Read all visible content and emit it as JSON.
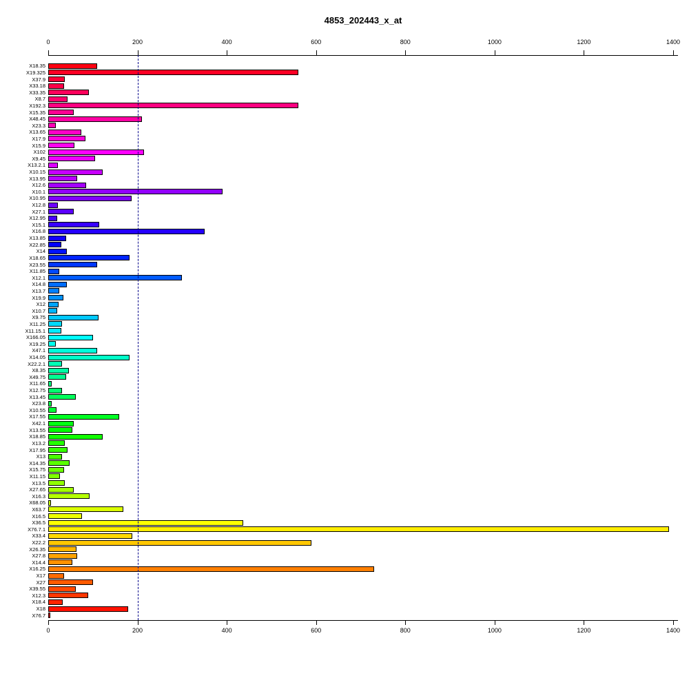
{
  "title": "4853_202443_x_at",
  "chart_data": {
    "type": "bar",
    "orientation": "horizontal",
    "title": "4853_202443_x_at",
    "xlabel": "",
    "ylabel": "",
    "xlim": [
      0,
      1400
    ],
    "x_ticks": [
      0,
      200,
      400,
      600,
      800,
      1000,
      1200,
      1400
    ],
    "grid": false,
    "legend": "none",
    "reference_line_x": 200,
    "reference_line_style": "dashed",
    "reference_line_color": "#00008B",
    "bar_border_color": "#000000",
    "background_color": "#FFFFFF",
    "palette": "reversed-rainbow (red→magenta→blue→cyan→green→yellow→orange→red)",
    "categories": [
      "X18.35",
      "X19.325",
      "X37.9",
      "X33.18",
      "X33.35",
      "X8.7",
      "X192.3",
      "X15.35",
      "X48.45",
      "X23.3",
      "X13.65",
      "X17.9",
      "X15.9",
      "X102",
      "X9.45",
      "X13.2.1",
      "X10.15",
      "X13.95",
      "X12.6",
      "X10.1",
      "X10.95",
      "X12.8",
      "X27.1",
      "X12.95",
      "X15.1",
      "X16.8",
      "X13.85",
      "X22.85",
      "X14",
      "X18.65",
      "X23.55",
      "X11.85",
      "X12.1",
      "X14.8",
      "X13.7",
      "X19.9",
      "X12",
      "X10.7",
      "X9.75",
      "X11.25",
      "X11.15.1",
      "X166.05",
      "X19.25",
      "X47.1",
      "X14.05",
      "X22.2.1",
      "X8.35",
      "X49.75",
      "X11.65",
      "X12.75",
      "X13.45",
      "X23.8",
      "X10.55",
      "X17.55",
      "X42.1",
      "X13.55",
      "X18.85",
      "X13.2",
      "X17.95",
      "X13",
      "X14.35",
      "X15.75",
      "X11.15",
      "X13.5",
      "X27.65",
      "X16.3",
      "X68.05",
      "X63.7",
      "X16.5",
      "X36.5",
      "X76.7.1",
      "X33.4",
      "X22.2",
      "X26.35",
      "X27.8",
      "X14.4",
      "X16.25",
      "X17",
      "X27",
      "X39.55",
      "X12.3",
      "X18.4",
      "X18",
      "X76.7"
    ],
    "values": [
      110,
      560,
      37,
      35,
      91,
      43,
      560,
      57,
      210,
      17,
      74,
      83,
      59,
      215,
      105,
      22,
      122,
      65,
      85,
      390,
      187,
      22,
      57,
      20,
      114,
      350,
      40,
      29,
      42,
      182,
      110,
      25,
      300,
      42,
      25,
      34,
      23,
      20,
      113,
      31,
      29,
      100,
      17,
      110,
      182,
      31,
      46,
      40,
      8,
      31,
      62,
      8,
      19,
      159,
      57,
      54,
      122,
      37,
      43,
      31,
      48,
      35,
      26,
      37,
      57,
      93,
      6,
      168,
      76,
      437,
      1390,
      188,
      590,
      63,
      65,
      54,
      730,
      35,
      100,
      62,
      90,
      32,
      179,
      5
    ]
  }
}
